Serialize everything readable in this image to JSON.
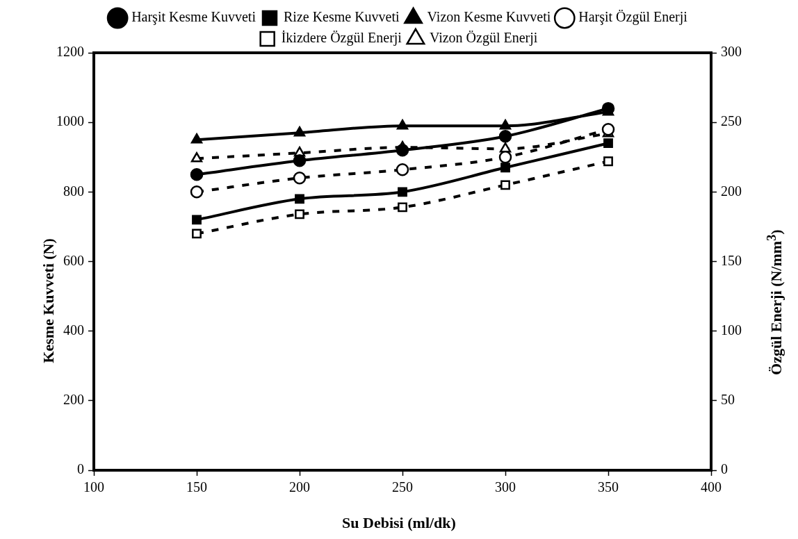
{
  "chart_data": {
    "type": "line",
    "xlabel": "Su Debisi (ml/dk)",
    "ylabel": "Kesme Kuvveti (N)",
    "y2label": "Özgül Enerji (N/mm$^{3}$)",
    "x": [
      150,
      200,
      250,
      300,
      350
    ],
    "xlim": [
      100,
      400
    ],
    "xticks": [
      100,
      150,
      200,
      250,
      300,
      350,
      400
    ],
    "ylim": [
      0,
      1200
    ],
    "yticks": [
      0,
      200,
      400,
      600,
      800,
      1000,
      1200
    ],
    "y2lim": [
      0,
      300
    ],
    "y2ticks": [
      0,
      50,
      100,
      150,
      200,
      250,
      300
    ],
    "grid": false,
    "legend": "top",
    "series": [
      {
        "name": "Harşit Kesme Kuvveti",
        "color": "#000000",
        "marker": "circle",
        "line_style": "solid",
        "values": [
          850,
          890,
          920,
          960,
          1040
        ]
      },
      {
        "name": "Rize Kesme Kuvveti",
        "color": "#000000",
        "marker": "square",
        "line_style": "solid",
        "values": [
          720,
          780,
          800,
          870,
          940
        ]
      },
      {
        "name": "Vizon Kesme Kuvveti",
        "color": "#000000",
        "marker": "triangle",
        "line_style": "solid",
        "values": [
          950,
          970,
          990,
          990,
          1030
        ]
      },
      {
        "name": "Harşit Özgül Enerji",
        "color": "#000000",
        "marker": "circle",
        "line_style": "dashed",
        "axis": "y2",
        "values": [
          200,
          210,
          216,
          225,
          245
        ]
      },
      {
        "name": "İkizdere Özgül Enerji",
        "color": "#000000",
        "marker": "square",
        "line_style": "dashed",
        "axis": "y2",
        "values": [
          170,
          184,
          189,
          205,
          222
        ]
      },
      {
        "name": "Vizon Özgül Enerji",
        "color": "#000000",
        "marker": "triangle",
        "line_style": "dashed",
        "axis": "y2",
        "values": [
          224,
          228,
          232,
          231,
          242
        ]
      }
    ]
  }
}
